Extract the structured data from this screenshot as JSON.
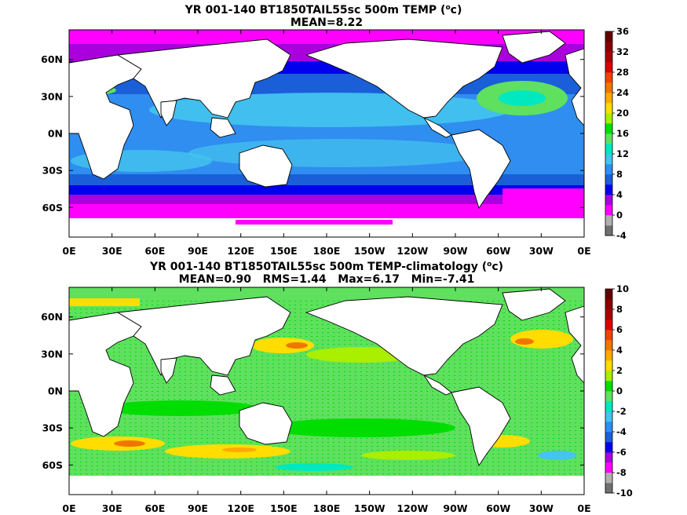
{
  "chart_data": [
    {
      "type": "heatmap",
      "title_line1_prefix": "YR 001-140 BT1850TAIL55sc 500m TEMP (",
      "title_unit_base": "o",
      "title_unit_rest": "c)",
      "title_line2": "MEAN=8.22",
      "x_ticks": [
        "0E",
        "30E",
        "60E",
        "90E",
        "120E",
        "150E",
        "180E",
        "150W",
        "120W",
        "90W",
        "60W",
        "30W",
        "0E"
      ],
      "x_range": [
        0,
        360
      ],
      "y_ticks": [
        {
          "label": "60N",
          "lat": 60
        },
        {
          "label": "30N",
          "lat": 30
        },
        {
          "label": "0N",
          "lat": 0
        },
        {
          "label": "30S",
          "lat": -30
        },
        {
          "label": "60S",
          "lat": -60
        }
      ],
      "y_range": [
        -84,
        84
      ],
      "colorbar": {
        "levels": [
          -4,
          0,
          4,
          8,
          12,
          16,
          20,
          24,
          28,
          32,
          36
        ],
        "labels": [
          "-4",
          "0",
          "4",
          "8",
          "12",
          "16",
          "20",
          "24",
          "28",
          "32",
          "36"
        ],
        "colors": [
          "#707070",
          "#b0b0b0",
          "#ff00ff",
          "#aa00dd",
          "#0000ee",
          "#1a5fd8",
          "#2f8ef0",
          "#44c4ee",
          "#00e8c0",
          "#5fe05f",
          "#00dd00",
          "#aaee00",
          "#ffdd00",
          "#ffaa00",
          "#ee7700",
          "#ee4400",
          "#dd0000",
          "#aa0000",
          "#880000",
          "#660000"
        ]
      },
      "mean": 8.22
    },
    {
      "type": "heatmap",
      "title_line1_prefix": "YR 001-140 BT1850TAIL55sc 500m TEMP-climatology (",
      "title_unit_base": "o",
      "title_unit_rest": "c)",
      "title_line2": "MEAN=0.90   RMS=1.44   Max=6.17   Min=-7.41",
      "x_ticks": [
        "0E",
        "30E",
        "60E",
        "90E",
        "120E",
        "150E",
        "180E",
        "150W",
        "120W",
        "90W",
        "60W",
        "30W",
        "0E"
      ],
      "x_range": [
        0,
        360
      ],
      "y_ticks": [
        {
          "label": "60N",
          "lat": 60
        },
        {
          "label": "30N",
          "lat": 30
        },
        {
          "label": "0N",
          "lat": 0
        },
        {
          "label": "30S",
          "lat": -30
        },
        {
          "label": "60S",
          "lat": -60
        }
      ],
      "y_range": [
        -84,
        84
      ],
      "colorbar": {
        "levels": [
          -10,
          -8,
          -6,
          -4,
          -2,
          0,
          2,
          4,
          6,
          8,
          10
        ],
        "labels": [
          "-10",
          "-8",
          "-6",
          "-4",
          "-2",
          "0",
          "2",
          "4",
          "6",
          "8",
          "10"
        ],
        "colors": [
          "#707070",
          "#b0b0b0",
          "#ff00ff",
          "#aa00dd",
          "#0000ee",
          "#1a5fd8",
          "#2f8ef0",
          "#44c4ee",
          "#00e8c0",
          "#5fe05f",
          "#00dd00",
          "#aaee00",
          "#ffdd00",
          "#ffaa00",
          "#ee7700",
          "#ee4400",
          "#dd0000",
          "#aa0000",
          "#880000",
          "#660000"
        ]
      },
      "mean": 0.9,
      "rms": 1.44,
      "max": 6.17,
      "min": -7.41
    }
  ]
}
